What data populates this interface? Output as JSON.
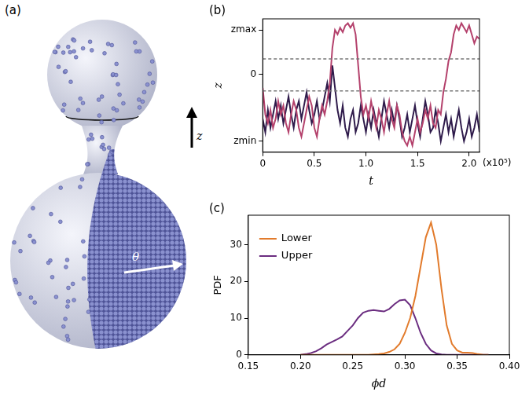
{
  "chart_data": [
    {
      "type": "line",
      "panel": "(b)",
      "x_label": "t",
      "y_label": "z",
      "annotation": "(x10⁵)",
      "x": [
        0,
        0.025,
        0.05,
        0.075,
        0.1,
        0.125,
        0.15,
        0.175,
        0.2,
        0.225,
        0.25,
        0.275,
        0.3,
        0.325,
        0.35,
        0.375,
        0.4,
        0.425,
        0.45,
        0.475,
        0.5,
        0.525,
        0.55,
        0.575,
        0.6,
        0.625,
        0.65,
        0.675,
        0.7,
        0.725,
        0.75,
        0.775,
        0.8,
        0.825,
        0.85,
        0.875,
        0.9,
        0.925,
        0.95,
        0.975,
        1.0,
        1.025,
        1.05,
        1.075,
        1.1,
        1.125,
        1.15,
        1.175,
        1.2,
        1.225,
        1.25,
        1.275,
        1.3,
        1.325,
        1.35,
        1.375,
        1.4,
        1.425,
        1.45,
        1.475,
        1.5,
        1.525,
        1.55,
        1.575,
        1.6,
        1.625,
        1.65,
        1.675,
        1.7,
        1.725,
        1.75,
        1.775,
        1.8,
        1.825,
        1.85,
        1.875,
        1.9,
        1.925,
        1.95,
        1.975,
        2.0,
        2.025,
        2.05,
        2.075,
        2.1
      ],
      "series": [
        {
          "color": "#b4416c",
          "values": [
            -0.3,
            -0.9,
            -1.1,
            -0.8,
            -1.2,
            -1.0,
            -0.6,
            -0.9,
            -0.7,
            -1.1,
            -1.3,
            -0.9,
            -0.6,
            -0.8,
            -1.2,
            -1.4,
            -1.1,
            -0.8,
            -0.5,
            -0.7,
            -1.2,
            -1.4,
            -1.0,
            -0.7,
            -0.9,
            -0.6,
            -0.2,
            0.6,
            1.0,
            0.9,
            1.05,
            0.95,
            1.1,
            1.15,
            1.05,
            1.15,
            0.9,
            0.2,
            -0.5,
            -0.9,
            -0.7,
            -1.0,
            -0.6,
            -0.9,
            -1.2,
            -0.8,
            -1.0,
            -1.3,
            -0.9,
            -0.6,
            -1.0,
            -1.2,
            -0.7,
            -0.9,
            -1.3,
            -1.5,
            -1.6,
            -1.4,
            -1.6,
            -1.3,
            -1.0,
            -1.3,
            -1.1,
            -0.8,
            -1.0,
            -0.7,
            -1.1,
            -1.2,
            -0.8,
            -0.9,
            -0.4,
            -0.1,
            0.3,
            0.5,
            0.9,
            1.1,
            1.0,
            1.15,
            1.05,
            0.95,
            1.1,
            0.9,
            0.7,
            0.85,
            0.8
          ]
        },
        {
          "color": "#2f1b4b",
          "values": [
            -1.0,
            -1.3,
            -0.8,
            -1.2,
            -0.9,
            -0.6,
            -1.0,
            -0.7,
            -1.1,
            -0.8,
            -0.5,
            -0.9,
            -1.2,
            -0.8,
            -0.6,
            -1.0,
            -0.7,
            -0.4,
            -0.8,
            -1.1,
            -0.9,
            -0.6,
            -1.0,
            -0.8,
            -0.5,
            -0.2,
            -0.6,
            0.2,
            -0.3,
            -0.8,
            -1.1,
            -0.7,
            -1.2,
            -1.4,
            -1.0,
            -0.8,
            -1.3,
            -1.1,
            -0.7,
            -1.0,
            -1.3,
            -0.9,
            -1.2,
            -0.8,
            -1.1,
            -1.4,
            -1.0,
            -0.6,
            -0.9,
            -1.2,
            -0.8,
            -1.1,
            -0.7,
            -1.0,
            -1.4,
            -1.2,
            -0.9,
            -1.3,
            -1.0,
            -0.7,
            -1.1,
            -1.4,
            -1.0,
            -0.6,
            -0.9,
            -1.3,
            -1.2,
            -0.8,
            -1.1,
            -1.5,
            -1.2,
            -0.9,
            -1.3,
            -1.0,
            -1.4,
            -1.1,
            -0.8,
            -1.2,
            -1.5,
            -1.3,
            -1.0,
            -1.4,
            -1.2,
            -0.9,
            -1.3
          ]
        }
      ],
      "reference_lines": [
        {
          "value": 0.35,
          "line_style": "dashed"
        },
        {
          "value": -0.37,
          "line_style": "dashed"
        }
      ],
      "xlim": [
        0,
        2.1
      ],
      "xticks": [
        0,
        0.5,
        {
          "value": 1,
          "label": "1.0"
        },
        1.5,
        {
          "value": 2,
          "label": "2.0"
        }
      ],
      "ylim": [
        -1.75,
        1.25
      ],
      "yticks": [
        {
          "value": -1.5,
          "label": "zmin"
        },
        0,
        {
          "value": 1,
          "label": "zmax"
        }
      ],
      "grid": false
    },
    {
      "type": "line",
      "panel": "(c)",
      "x_label": "ϕd",
      "y_label": "PDF",
      "legend": "upper left",
      "x": [
        0.2,
        0.205,
        0.21,
        0.215,
        0.22,
        0.225,
        0.23,
        0.235,
        0.24,
        0.245,
        0.25,
        0.255,
        0.26,
        0.265,
        0.27,
        0.275,
        0.28,
        0.285,
        0.29,
        0.295,
        0.3,
        0.305,
        0.31,
        0.315,
        0.32,
        0.325,
        0.33,
        0.335,
        0.34,
        0.345,
        0.35,
        0.355,
        0.36,
        0.365,
        0.37,
        0.375,
        0.38
      ],
      "series": [
        {
          "name": "Lower",
          "color": "#e27b2c",
          "values": [
            0,
            0,
            0,
            0,
            0,
            0,
            0,
            0,
            0,
            0,
            0,
            0,
            0,
            0,
            0.1,
            0.2,
            0.4,
            0.8,
            1.5,
            3,
            6,
            10,
            16,
            24,
            32,
            36,
            30,
            18,
            8,
            3,
            1.2,
            0.6,
            0.6,
            0.5,
            0.2,
            0,
            0
          ]
        },
        {
          "name": "Upper",
          "color": "#6b2d80",
          "values": [
            0,
            0.2,
            0.5,
            1,
            1.8,
            2.8,
            3.5,
            4.2,
            5,
            6.5,
            8,
            10,
            11.5,
            12,
            12.2,
            12,
            11.8,
            12.5,
            13.8,
            14.8,
            15,
            13.5,
            10,
            6,
            3,
            1.2,
            0.4,
            0.1,
            0,
            0,
            0,
            0,
            0,
            0,
            0,
            0,
            0
          ]
        }
      ],
      "xlim": [
        0.15,
        0.4
      ],
      "xticks": [
        0.15,
        {
          "value": 0.2,
          "label": "0.20"
        },
        0.25,
        {
          "value": 0.3,
          "label": "0.30"
        },
        0.35,
        {
          "value": 0.4,
          "label": "0.40"
        }
      ],
      "ylim": [
        0,
        38
      ],
      "yticks": [
        0,
        10,
        20,
        30
      ],
      "grid": false
    }
  ],
  "diagram": {
    "panel": "(a)",
    "labels": {
      "axis": "z",
      "angle": "θ"
    }
  }
}
